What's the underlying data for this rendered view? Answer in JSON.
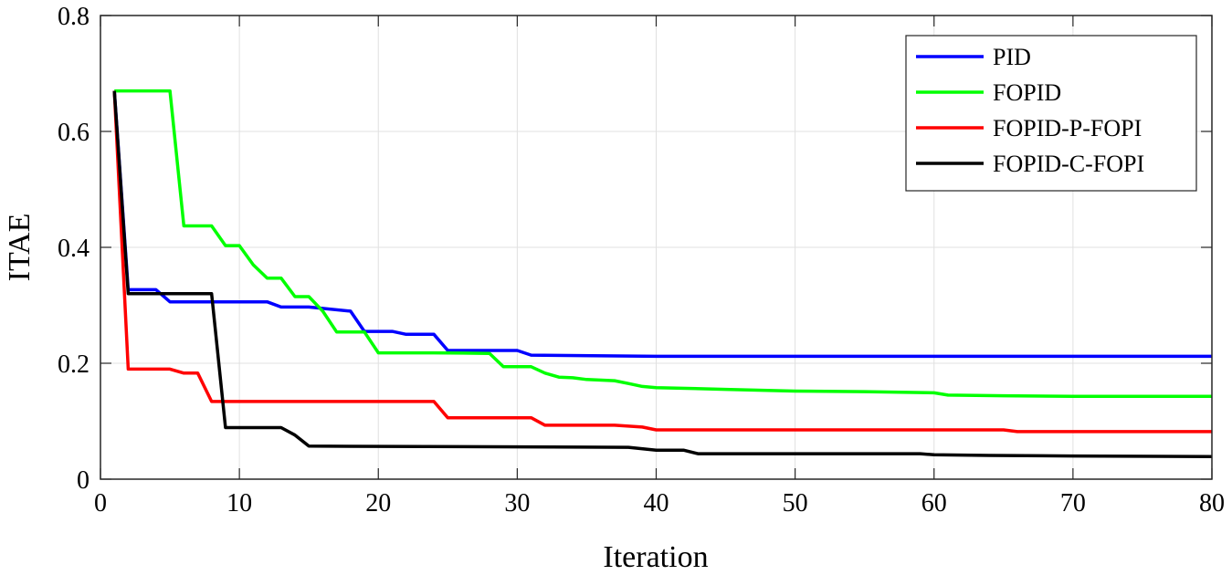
{
  "chart_data": {
    "type": "line",
    "title": "",
    "xlabel": "Iteration",
    "ylabel": "ITAE",
    "xlim": [
      0,
      80
    ],
    "ylim": [
      0,
      0.8
    ],
    "xticks": [
      "0",
      "10",
      "20",
      "30",
      "40",
      "50",
      "60",
      "70",
      "80"
    ],
    "yticks": [
      "0",
      "0.2",
      "0.4",
      "0.6",
      "0.8"
    ],
    "grid": true,
    "legend_position": "top-right",
    "series": [
      {
        "name": "PID",
        "color": "#0000ff",
        "x": [
          1,
          2,
          4,
          5,
          8,
          12,
          13,
          15,
          18,
          19,
          21,
          22,
          24,
          25,
          30,
          31,
          40,
          80
        ],
        "y": [
          0.67,
          0.327,
          0.327,
          0.306,
          0.306,
          0.306,
          0.297,
          0.297,
          0.29,
          0.255,
          0.255,
          0.25,
          0.25,
          0.222,
          0.222,
          0.214,
          0.212,
          0.212
        ]
      },
      {
        "name": "FOPID",
        "color": "#00ff00",
        "x": [
          1,
          5,
          6,
          8,
          9,
          10,
          11,
          12,
          13,
          14,
          15,
          16,
          17,
          19,
          20,
          24,
          28,
          29,
          31,
          32,
          33,
          34,
          35,
          37,
          38,
          39,
          40,
          45,
          50,
          55,
          60,
          61,
          65,
          70,
          80
        ],
        "y": [
          0.67,
          0.67,
          0.437,
          0.437,
          0.403,
          0.403,
          0.37,
          0.347,
          0.347,
          0.315,
          0.315,
          0.29,
          0.254,
          0.254,
          0.218,
          0.218,
          0.217,
          0.194,
          0.194,
          0.183,
          0.176,
          0.175,
          0.172,
          0.17,
          0.165,
          0.16,
          0.158,
          0.155,
          0.152,
          0.151,
          0.149,
          0.145,
          0.144,
          0.143,
          0.143
        ]
      },
      {
        "name": "FOPID-P-FOPI",
        "color": "#ff0000",
        "x": [
          1,
          2,
          5,
          6,
          7,
          8,
          24,
          25,
          31,
          32,
          37,
          39,
          40,
          65,
          66,
          80
        ],
        "y": [
          0.67,
          0.19,
          0.19,
          0.183,
          0.183,
          0.134,
          0.134,
          0.106,
          0.106,
          0.093,
          0.093,
          0.09,
          0.085,
          0.085,
          0.082,
          0.082
        ]
      },
      {
        "name": "FOPID-C-FOPI",
        "color": "#000000",
        "x": [
          1,
          2,
          8,
          9,
          13,
          14,
          15,
          38,
          40,
          42,
          43,
          59,
          60,
          64,
          70,
          80
        ],
        "y": [
          0.67,
          0.32,
          0.32,
          0.089,
          0.089,
          0.076,
          0.057,
          0.055,
          0.05,
          0.05,
          0.044,
          0.044,
          0.042,
          0.041,
          0.04,
          0.039
        ]
      }
    ]
  }
}
